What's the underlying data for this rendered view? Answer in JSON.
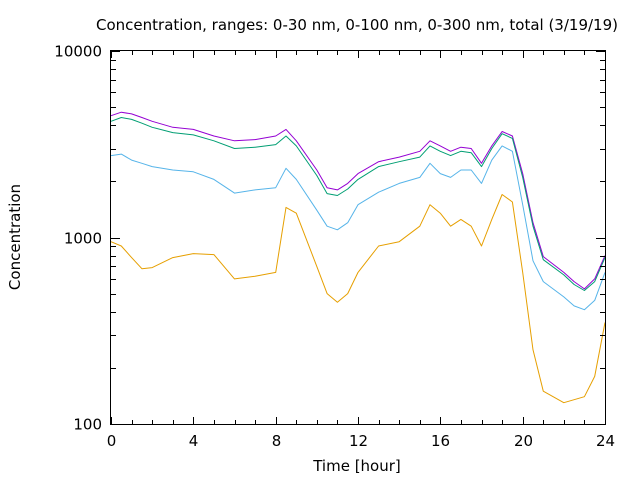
{
  "chart_data": {
    "type": "line",
    "title": "Concentration, ranges: 0-30 nm, 0-100 nm, 0-300 nm, total (3/19/19)",
    "xlabel": "Time [hour]",
    "ylabel": "Concentration",
    "xlim": [
      0,
      24
    ],
    "ylim": [
      100,
      10000
    ],
    "yscale": "log",
    "grid": false,
    "legend": "none",
    "x_ticks": [
      "0",
      "4",
      "8",
      "12",
      "16",
      "20",
      "24"
    ],
    "y_ticks": [
      "100",
      "1000",
      "10000"
    ],
    "x": [
      0,
      0.5,
      1,
      1.5,
      2,
      3,
      4,
      5,
      6,
      7,
      8,
      8.5,
      9,
      10,
      10.5,
      11,
      11.5,
      12,
      13,
      14,
      15,
      15.5,
      16,
      16.5,
      17,
      17.5,
      18,
      18.5,
      19,
      19.5,
      20,
      20.5,
      21,
      22,
      22.5,
      23,
      23.5,
      24
    ],
    "series": [
      {
        "color": "#9400d3",
        "values": [
          4500,
          4700,
          4600,
          4400,
          4200,
          3900,
          3800,
          3500,
          3300,
          3350,
          3500,
          3800,
          3300,
          2300,
          1850,
          1800,
          1950,
          2200,
          2550,
          2700,
          2900,
          3300,
          3100,
          2900,
          3050,
          3000,
          2500,
          3100,
          3700,
          3500,
          2200,
          1200,
          790,
          650,
          580,
          530,
          600,
          800
        ]
      },
      {
        "color": "#009e73",
        "values": [
          4200,
          4400,
          4300,
          4100,
          3900,
          3650,
          3550,
          3300,
          3000,
          3050,
          3150,
          3500,
          3100,
          2150,
          1720,
          1680,
          1820,
          2050,
          2400,
          2550,
          2700,
          3100,
          2900,
          2750,
          2900,
          2850,
          2400,
          3000,
          3600,
          3400,
          2100,
          1150,
          760,
          630,
          560,
          520,
          580,
          780
        ]
      },
      {
        "color": "#56b4e9",
        "values": [
          2750,
          2800,
          2600,
          2500,
          2400,
          2300,
          2250,
          2050,
          1730,
          1800,
          1850,
          2350,
          2050,
          1400,
          1150,
          1100,
          1200,
          1500,
          1750,
          1950,
          2100,
          2500,
          2200,
          2100,
          2300,
          2300,
          1950,
          2600,
          3100,
          2900,
          1500,
          750,
          580,
          480,
          430,
          410,
          460,
          650
        ]
      },
      {
        "color": "#e69f00",
        "values": [
          950,
          900,
          780,
          680,
          690,
          780,
          820,
          810,
          600,
          620,
          650,
          1450,
          1350,
          700,
          500,
          450,
          500,
          650,
          900,
          950,
          1150,
          1500,
          1350,
          1150,
          1250,
          1150,
          900,
          1250,
          1700,
          1550,
          650,
          250,
          150,
          130,
          135,
          140,
          180,
          350
        ]
      }
    ]
  }
}
